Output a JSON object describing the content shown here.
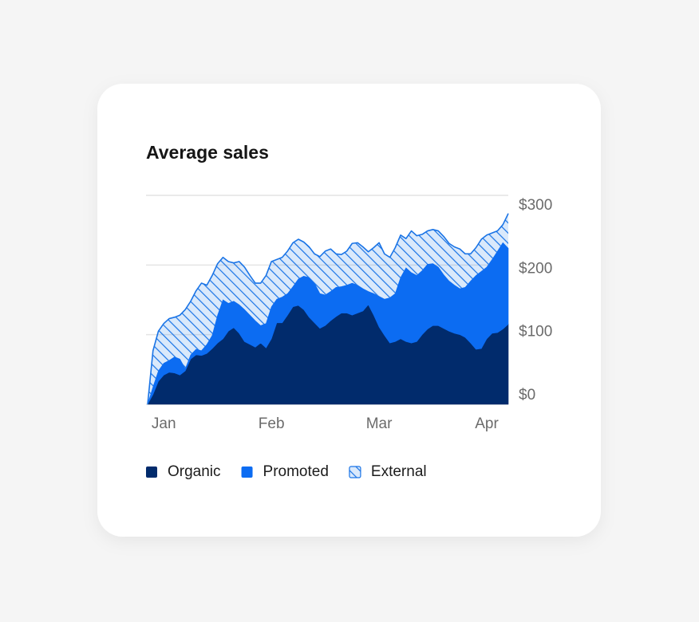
{
  "chart_data": {
    "type": "area",
    "stacked": true,
    "title": "Average sales",
    "categories": [
      null,
      null,
      null,
      "Jan",
      null,
      null,
      null,
      null,
      null,
      null,
      null,
      null,
      null,
      null,
      null,
      null,
      null,
      null,
      null,
      null,
      null,
      null,
      null,
      "Feb",
      null,
      null,
      null,
      null,
      null,
      null,
      null,
      null,
      null,
      null,
      null,
      null,
      null,
      null,
      null,
      null,
      null,
      null,
      null,
      "Mar",
      null,
      null,
      null,
      null,
      null,
      null,
      null,
      null,
      null,
      null,
      null,
      null,
      null,
      null,
      null,
      null,
      null,
      null,
      null,
      "Apr",
      null,
      null,
      null,
      null
    ],
    "series": [
      {
        "name": "Organic",
        "color": "#012b6c",
        "fill": "solid",
        "values": [
          0,
          14,
          33,
          42,
          46,
          45,
          42,
          48,
          65,
          71,
          70,
          73,
          80,
          88,
          94,
          105,
          110,
          102,
          90,
          86,
          82,
          88,
          81,
          94,
          117,
          117,
          128,
          140,
          142,
          136,
          125,
          117,
          109,
          113,
          120,
          126,
          131,
          131,
          128,
          131,
          134,
          143,
          128,
          111,
          99,
          88,
          90,
          94,
          90,
          88,
          90,
          100,
          108,
          113,
          113,
          109,
          105,
          102,
          100,
          96,
          88,
          79,
          80,
          94,
          102,
          103,
          108,
          115
        ]
      },
      {
        "name": "Promoted",
        "color": "#0c6cf2",
        "fill": "solid",
        "values": [
          0,
          11,
          15,
          17,
          17,
          23,
          23,
          3,
          6,
          8,
          7,
          13,
          19,
          40,
          56,
          40,
          38,
          41,
          46,
          42,
          38,
          25,
          35,
          46,
          34,
          37,
          31,
          29,
          38,
          48,
          57,
          57,
          50,
          44,
          42,
          42,
          38,
          40,
          46,
          40,
          32,
          19,
          31,
          44,
          52,
          65,
          69,
          88,
          106,
          101,
          95,
          92,
          93,
          89,
          84,
          77,
          72,
          69,
          66,
          72,
          89,
          106,
          111,
          103,
          106,
          117,
          124,
          109
        ]
      },
      {
        "name": "External",
        "color": "#1a74e6",
        "fill": "hatch",
        "values": [
          0,
          52,
          57,
          57,
          60,
          57,
          63,
          85,
          77,
          84,
          97,
          85,
          86,
          74,
          61,
          60,
          55,
          62,
          61,
          57,
          54,
          61,
          69,
          65,
          57,
          57,
          61,
          63,
          57,
          49,
          44,
          42,
          53,
          63,
          61,
          48,
          46,
          49,
          57,
          61,
          60,
          57,
          66,
          77,
          65,
          58,
          66,
          61,
          42,
          60,
          57,
          52,
          48,
          49,
          52,
          55,
          54,
          55,
          57,
          48,
          39,
          40,
          46,
          46,
          38,
          29,
          26,
          50
        ]
      }
    ],
    "ylim": [
      0,
      300
    ],
    "yticks": [
      {
        "value": 0,
        "label": "$0"
      },
      {
        "value": 100,
        "label": "$100"
      },
      {
        "value": 200,
        "label": "$200"
      },
      {
        "value": 300,
        "label": "$300"
      }
    ],
    "y_axis_side": "right",
    "grid": true,
    "legend": "bottom"
  }
}
